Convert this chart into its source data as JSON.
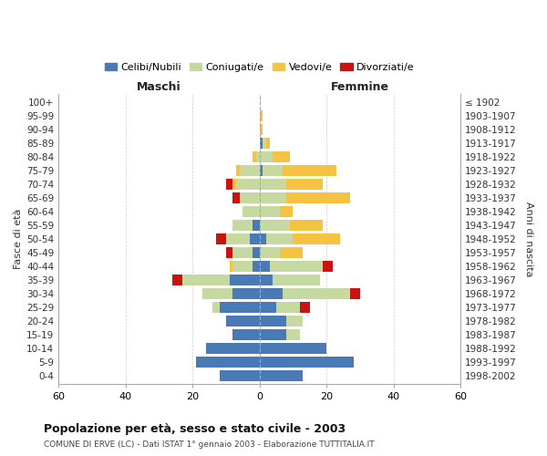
{
  "age_groups": [
    "0-4",
    "5-9",
    "10-14",
    "15-19",
    "20-24",
    "25-29",
    "30-34",
    "35-39",
    "40-44",
    "45-49",
    "50-54",
    "55-59",
    "60-64",
    "65-69",
    "70-74",
    "75-79",
    "80-84",
    "85-89",
    "90-94",
    "95-99",
    "100+"
  ],
  "birth_years": [
    "1998-2002",
    "1993-1997",
    "1988-1992",
    "1983-1987",
    "1978-1982",
    "1973-1977",
    "1968-1972",
    "1963-1967",
    "1958-1962",
    "1953-1957",
    "1948-1952",
    "1943-1947",
    "1938-1942",
    "1933-1937",
    "1928-1932",
    "1923-1927",
    "1918-1922",
    "1913-1917",
    "1908-1912",
    "1903-1907",
    "≤ 1902"
  ],
  "male": {
    "celibi": [
      12,
      19,
      16,
      8,
      10,
      12,
      8,
      9,
      2,
      2,
      3,
      2,
      0,
      0,
      0,
      0,
      0,
      0,
      0,
      0,
      0
    ],
    "coniugati": [
      0,
      0,
      0,
      0,
      0,
      2,
      9,
      14,
      6,
      6,
      7,
      6,
      5,
      6,
      7,
      6,
      1,
      0,
      0,
      0,
      0
    ],
    "vedovi": [
      0,
      0,
      0,
      0,
      0,
      0,
      0,
      0,
      1,
      0,
      0,
      0,
      0,
      0,
      1,
      1,
      1,
      0,
      0,
      0,
      0
    ],
    "divorziati": [
      0,
      0,
      0,
      0,
      0,
      0,
      0,
      3,
      0,
      2,
      3,
      0,
      0,
      2,
      2,
      0,
      0,
      0,
      0,
      0,
      0
    ]
  },
  "female": {
    "nubili": [
      13,
      28,
      20,
      8,
      8,
      5,
      7,
      4,
      3,
      0,
      2,
      0,
      0,
      0,
      0,
      1,
      0,
      1,
      0,
      0,
      0
    ],
    "coniugate": [
      0,
      0,
      0,
      4,
      5,
      7,
      20,
      14,
      16,
      6,
      8,
      9,
      6,
      8,
      8,
      6,
      4,
      1,
      0,
      0,
      0
    ],
    "vedove": [
      0,
      0,
      0,
      0,
      0,
      0,
      0,
      0,
      0,
      0,
      0,
      0,
      0,
      0,
      0,
      0,
      0,
      0,
      0,
      0,
      0
    ],
    "divorziate": [
      0,
      0,
      0,
      0,
      0,
      3,
      3,
      0,
      3,
      0,
      0,
      0,
      0,
      0,
      0,
      0,
      0,
      0,
      0,
      0,
      0
    ],
    "vedove2": [
      0,
      0,
      0,
      0,
      0,
      0,
      0,
      0,
      0,
      7,
      14,
      10,
      4,
      19,
      11,
      16,
      5,
      1,
      1,
      1,
      0
    ]
  },
  "colors": {
    "celibi": "#4a7ab5",
    "coniugati": "#c5d9a0",
    "vedovi": "#f5c242",
    "divorziati": "#cc1111"
  },
  "xlim": 60,
  "title": "Popolazione per età, sesso e stato civile - 2003",
  "subtitle": "COMUNE DI ERVE (LC) - Dati ISTAT 1° gennaio 2003 - Elaborazione TUTTITALIA.IT",
  "xlabel_left": "Maschi",
  "xlabel_right": "Femmine",
  "ylabel_left": "Fasce di età",
  "ylabel_right": "Anni di nascita",
  "legend_labels": [
    "Celibi/Nubili",
    "Coniugati/e",
    "Vedovi/e",
    "Divorziati/e"
  ],
  "bg_color": "#ffffff",
  "grid_color": "#cccccc"
}
